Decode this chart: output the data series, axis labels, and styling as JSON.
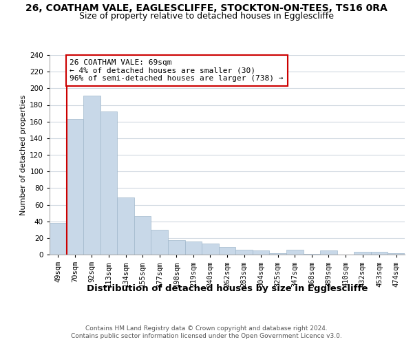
{
  "title1": "26, COATHAM VALE, EAGLESCLIFFE, STOCKTON-ON-TEES, TS16 0RA",
  "title2": "Size of property relative to detached houses in Egglescliffe",
  "xlabel": "Distribution of detached houses by size in Egglescliffe",
  "ylabel": "Number of detached properties",
  "footer1": "Contains HM Land Registry data © Crown copyright and database right 2024.",
  "footer2": "Contains public sector information licensed under the Open Government Licence v3.0.",
  "categories": [
    "49sqm",
    "70sqm",
    "92sqm",
    "113sqm",
    "134sqm",
    "155sqm",
    "177sqm",
    "198sqm",
    "219sqm",
    "240sqm",
    "262sqm",
    "283sqm",
    "304sqm",
    "325sqm",
    "347sqm",
    "368sqm",
    "389sqm",
    "410sqm",
    "432sqm",
    "453sqm",
    "474sqm"
  ],
  "values": [
    38,
    163,
    191,
    172,
    69,
    46,
    30,
    17,
    16,
    13,
    9,
    6,
    5,
    2,
    6,
    1,
    5,
    0,
    3,
    3,
    2
  ],
  "bar_color": "#c8d8e8",
  "bar_edge_color": "#a0b8cc",
  "annotation_text": "26 COATHAM VALE: 69sqm\n← 4% of detached houses are smaller (30)\n96% of semi-detached houses are larger (738) →",
  "annotation_box_color": "#ffffff",
  "annotation_border_color": "#cc0000",
  "vline_color": "#cc0000",
  "vline_x": 0.5,
  "ylim": [
    0,
    240
  ],
  "yticks": [
    0,
    20,
    40,
    60,
    80,
    100,
    120,
    140,
    160,
    180,
    200,
    220,
    240
  ],
  "background_color": "#ffffff",
  "grid_color": "#d0d8e0",
  "title1_fontsize": 10,
  "title2_fontsize": 9,
  "xlabel_fontsize": 9.5,
  "ylabel_fontsize": 8,
  "tick_fontsize": 7.5,
  "annotation_fontsize": 8,
  "footer_fontsize": 6.5
}
